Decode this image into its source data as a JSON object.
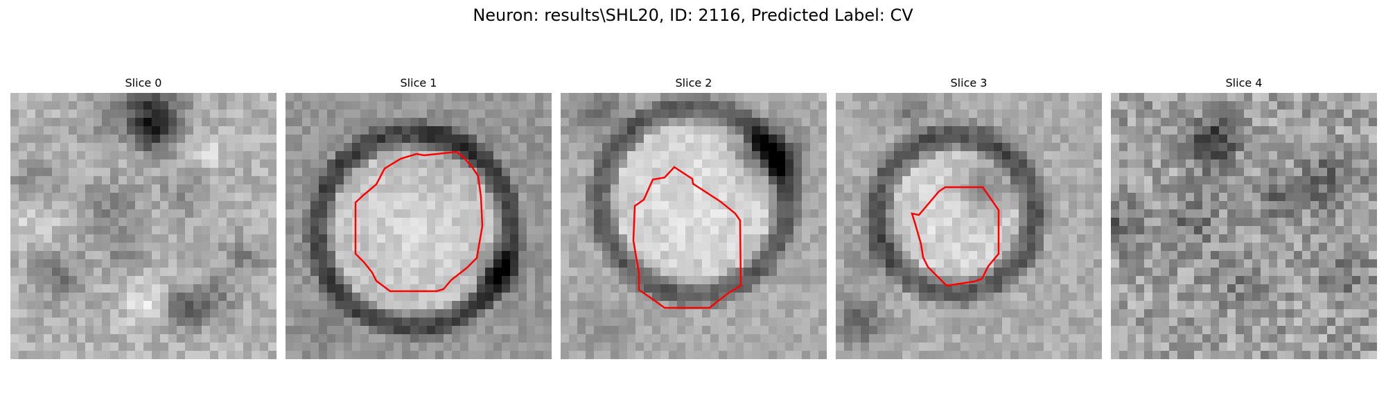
{
  "figure": {
    "title": "Neuron: results\\SHL20, ID: 2116, Predicted Label: CV",
    "outline_color": "#ff0000",
    "colormap": "grayscale"
  },
  "panels": [
    {
      "title": "Slice 0",
      "has_outline": false
    },
    {
      "title": "Slice 1",
      "has_outline": true
    },
    {
      "title": "Slice 2",
      "has_outline": true
    },
    {
      "title": "Slice 3",
      "has_outline": true
    },
    {
      "title": "Slice 4",
      "has_outline": false
    }
  ]
}
